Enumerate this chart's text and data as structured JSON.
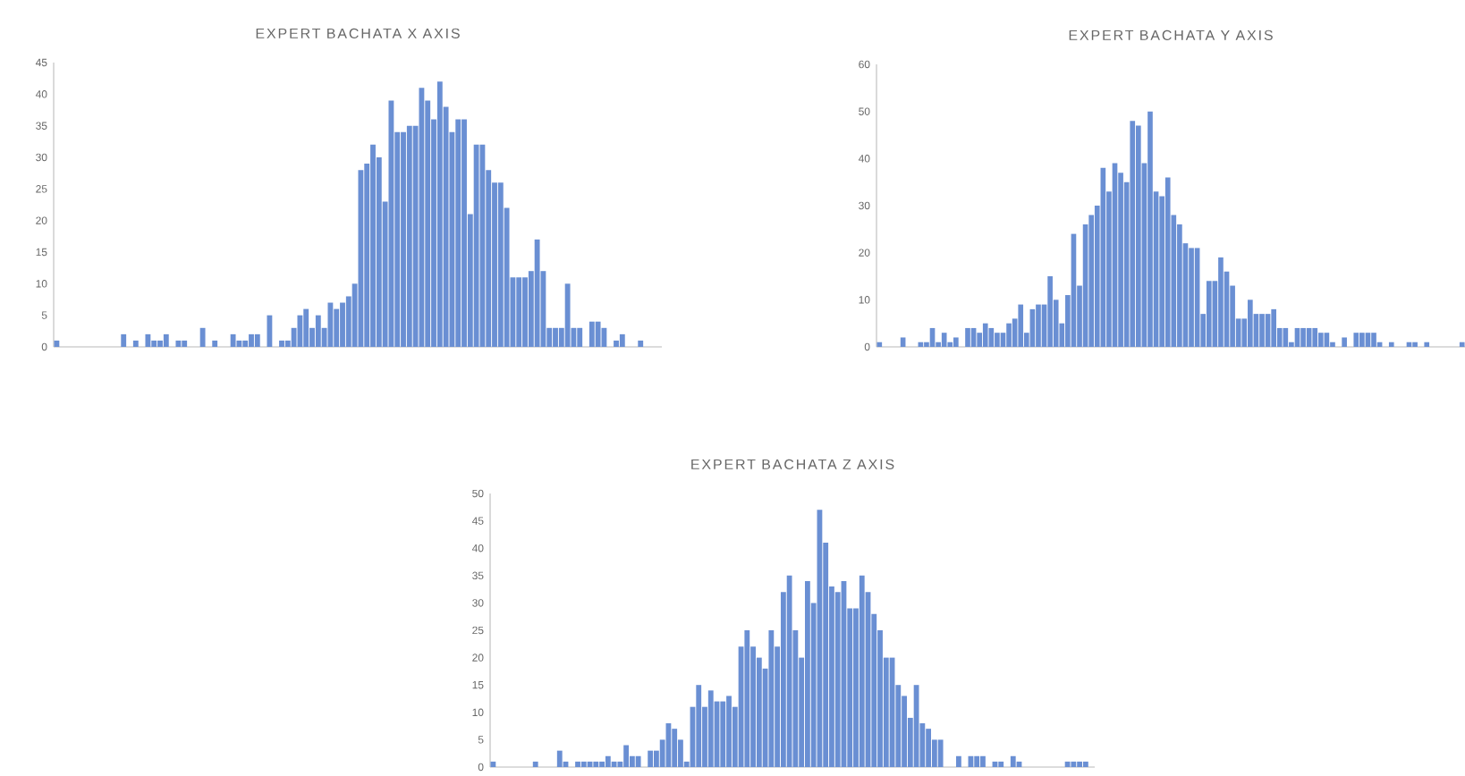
{
  "chart_data": [
    {
      "type": "bar",
      "title": "EXPERT BACHATA X AXIS",
      "color": "#6a8fd3",
      "tick_labels": "y",
      "grid": false,
      "ylim": [
        0,
        45
      ],
      "yticks": [
        0,
        5,
        10,
        15,
        20,
        25,
        30,
        35,
        40,
        45
      ],
      "categories": [
        null,
        null,
        null,
        null,
        null,
        null,
        null,
        null,
        null,
        null,
        null,
        null,
        null,
        null,
        null,
        null,
        null,
        null,
        null,
        null,
        null,
        null,
        null,
        null,
        null,
        null,
        null,
        null,
        null,
        null,
        null,
        null,
        null,
        null,
        null,
        null,
        null,
        null,
        null,
        null,
        null,
        null,
        null,
        null,
        null,
        null,
        null,
        null,
        null,
        null,
        null,
        null,
        null,
        null,
        null,
        null,
        null,
        null,
        null,
        null,
        null,
        null,
        null,
        null,
        null,
        null,
        null,
        null,
        null,
        null,
        null,
        null,
        null,
        null,
        null,
        null,
        null,
        null,
        null,
        null,
        null,
        null,
        null,
        null,
        null,
        null,
        null,
        null,
        null,
        null,
        null,
        null,
        null,
        null,
        null,
        null,
        null,
        null,
        null,
        null
      ],
      "values": [
        1,
        0,
        0,
        0,
        0,
        0,
        0,
        0,
        0,
        0,
        0,
        2,
        0,
        1,
        0,
        2,
        1,
        1,
        2,
        0,
        1,
        1,
        0,
        0,
        3,
        0,
        1,
        0,
        0,
        2,
        1,
        1,
        2,
        2,
        0,
        5,
        0,
        1,
        1,
        3,
        5,
        6,
        3,
        5,
        3,
        7,
        6,
        7,
        8,
        10,
        28,
        29,
        32,
        30,
        23,
        39,
        34,
        34,
        35,
        35,
        41,
        39,
        36,
        42,
        38,
        34,
        36,
        36,
        21,
        32,
        32,
        28,
        26,
        26,
        22,
        11,
        11,
        11,
        12,
        17,
        12,
        3,
        3,
        3,
        10,
        3,
        3,
        0,
        4,
        4,
        3,
        0,
        1,
        2,
        0,
        0,
        1,
        0,
        0,
        0
      ]
    },
    {
      "type": "bar",
      "title": "EXPERT BACHATA Y AXIS",
      "color": "#6a8fd3",
      "tick_labels": "y",
      "grid": false,
      "ylim": [
        0,
        60
      ],
      "yticks": [
        0,
        10,
        20,
        30,
        40,
        50,
        60
      ],
      "categories": [
        null,
        null,
        null,
        null,
        null,
        null,
        null,
        null,
        null,
        null,
        null,
        null,
        null,
        null,
        null,
        null,
        null,
        null,
        null,
        null,
        null,
        null,
        null,
        null,
        null,
        null,
        null,
        null,
        null,
        null,
        null,
        null,
        null,
        null,
        null,
        null,
        null,
        null,
        null,
        null,
        null,
        null,
        null,
        null,
        null,
        null,
        null,
        null,
        null,
        null,
        null,
        null,
        null,
        null,
        null,
        null,
        null,
        null,
        null,
        null,
        null,
        null,
        null,
        null,
        null,
        null,
        null,
        null,
        null,
        null,
        null,
        null,
        null,
        null,
        null,
        null,
        null,
        null,
        null,
        null,
        null,
        null,
        null,
        null,
        null,
        null,
        null,
        null,
        null,
        null,
        null,
        null,
        null,
        null,
        null,
        null,
        null,
        null,
        null,
        null
      ],
      "values": [
        1,
        0,
        0,
        0,
        2,
        0,
        0,
        1,
        1,
        4,
        1,
        3,
        1,
        2,
        0,
        4,
        4,
        3,
        5,
        4,
        3,
        3,
        5,
        6,
        9,
        3,
        8,
        9,
        9,
        15,
        10,
        5,
        11,
        24,
        13,
        26,
        28,
        30,
        38,
        33,
        39,
        37,
        35,
        48,
        47,
        39,
        50,
        33,
        32,
        36,
        28,
        26,
        22,
        21,
        21,
        7,
        14,
        14,
        19,
        16,
        13,
        6,
        6,
        10,
        7,
        7,
        7,
        8,
        4,
        4,
        1,
        4,
        4,
        4,
        4,
        3,
        3,
        1,
        0,
        2,
        0,
        3,
        3,
        3,
        3,
        1,
        0,
        1,
        0,
        0,
        1,
        1,
        0,
        1,
        0,
        0,
        0,
        0,
        0,
        1
      ]
    },
    {
      "type": "bar",
      "title": "EXPERT BACHATA Z AXIS",
      "color": "#6a8fd3",
      "tick_labels": "y",
      "grid": false,
      "ylim": [
        0,
        50
      ],
      "yticks": [
        0,
        5,
        10,
        15,
        20,
        25,
        30,
        35,
        40,
        45,
        50
      ],
      "categories": [
        null,
        null,
        null,
        null,
        null,
        null,
        null,
        null,
        null,
        null,
        null,
        null,
        null,
        null,
        null,
        null,
        null,
        null,
        null,
        null,
        null,
        null,
        null,
        null,
        null,
        null,
        null,
        null,
        null,
        null,
        null,
        null,
        null,
        null,
        null,
        null,
        null,
        null,
        null,
        null,
        null,
        null,
        null,
        null,
        null,
        null,
        null,
        null,
        null,
        null,
        null,
        null,
        null,
        null,
        null,
        null,
        null,
        null,
        null,
        null,
        null,
        null,
        null,
        null,
        null,
        null,
        null,
        null,
        null,
        null,
        null,
        null,
        null,
        null,
        null,
        null,
        null,
        null,
        null,
        null,
        null,
        null,
        null,
        null,
        null,
        null,
        null,
        null,
        null,
        null,
        null,
        null,
        null,
        null,
        null,
        null,
        null,
        null,
        null,
        null
      ],
      "values": [
        1,
        0,
        0,
        0,
        0,
        0,
        0,
        1,
        0,
        0,
        0,
        3,
        1,
        0,
        1,
        1,
        1,
        1,
        1,
        2,
        1,
        1,
        4,
        2,
        2,
        0,
        3,
        3,
        5,
        8,
        7,
        5,
        1,
        11,
        15,
        11,
        14,
        12,
        12,
        13,
        11,
        22,
        25,
        22,
        20,
        18,
        25,
        22,
        32,
        35,
        25,
        20,
        34,
        30,
        47,
        41,
        33,
        32,
        34,
        29,
        29,
        35,
        32,
        28,
        25,
        20,
        20,
        15,
        13,
        9,
        15,
        8,
        7,
        5,
        5,
        0,
        0,
        2,
        0,
        2,
        2,
        2,
        0,
        1,
        1,
        0,
        2,
        1,
        0,
        0,
        0,
        0,
        0,
        0,
        0,
        1,
        1,
        1,
        1,
        0
      ]
    }
  ]
}
